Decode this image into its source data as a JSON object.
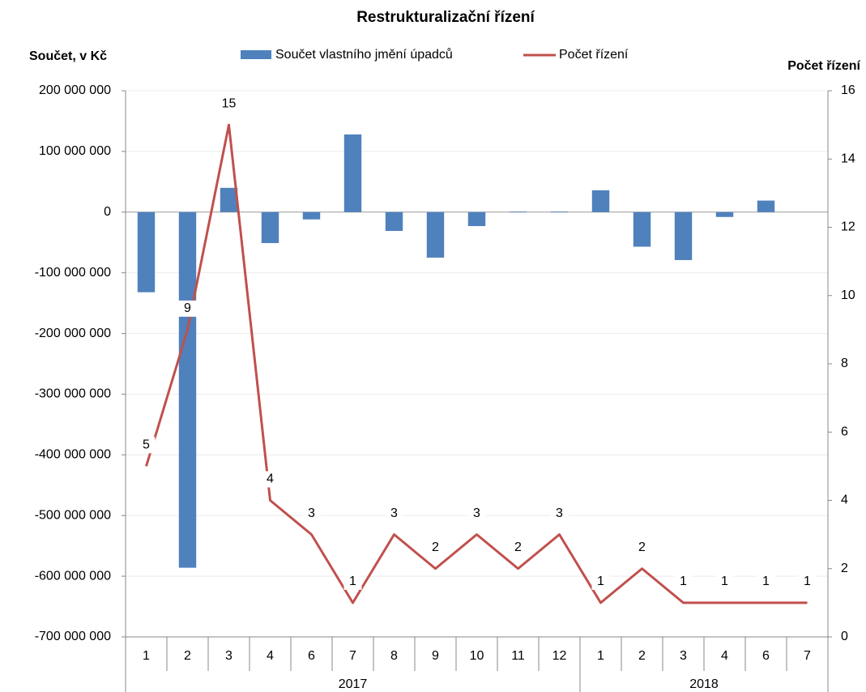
{
  "chart_data": {
    "type": "bar-line",
    "title": "Restrukturalizační řízení",
    "y_label": "Součet, v Kč",
    "y2_label": "Počet řízení",
    "categories": [
      "1",
      "2",
      "3",
      "4",
      "6",
      "7",
      "8",
      "9",
      "10",
      "11",
      "12",
      "1",
      "2",
      "3",
      "4",
      "6",
      "7"
    ],
    "category_groups": [
      {
        "name": "2017",
        "size": 11
      },
      {
        "name": "2018",
        "size": 6
      }
    ],
    "series": [
      {
        "name": "Součet vlastního jmění úpadců",
        "type": "bar",
        "color": "#4f81bd",
        "values": [
          -132000000,
          -586000000,
          40000000,
          -51000000,
          -12000000,
          128000000,
          -31000000,
          -75000000,
          -23000000,
          1000000,
          1000000,
          36000000,
          -57000000,
          -79000000,
          -8000000,
          19000000,
          0
        ]
      },
      {
        "name": "Počet řízení",
        "type": "line",
        "axis": "y2",
        "color": "#c0504d",
        "values": [
          5,
          9,
          15,
          4,
          3,
          1,
          3,
          2,
          3,
          2,
          3,
          1,
          2,
          1,
          1,
          1,
          1
        ]
      }
    ],
    "ylim": [
      -700000000,
      200000000
    ],
    "yticks": [
      {
        "value": -700000000,
        "label": "-700 000 000"
      },
      {
        "value": -600000000,
        "label": "-600 000 000"
      },
      {
        "value": -500000000,
        "label": "-500 000 000"
      },
      {
        "value": -400000000,
        "label": "-400 000 000"
      },
      {
        "value": -300000000,
        "label": "-300 000 000"
      },
      {
        "value": -200000000,
        "label": "-200 000 000"
      },
      {
        "value": -100000000,
        "label": "-100 000 000"
      },
      0,
      {
        "value": 100000000,
        "label": "100 000 000"
      },
      {
        "value": 200000000,
        "label": "200 000 000"
      }
    ],
    "y2lim": [
      0,
      16
    ],
    "y2ticks": [
      0,
      2,
      4,
      6,
      8,
      10,
      12,
      14,
      16
    ],
    "grid": true
  }
}
